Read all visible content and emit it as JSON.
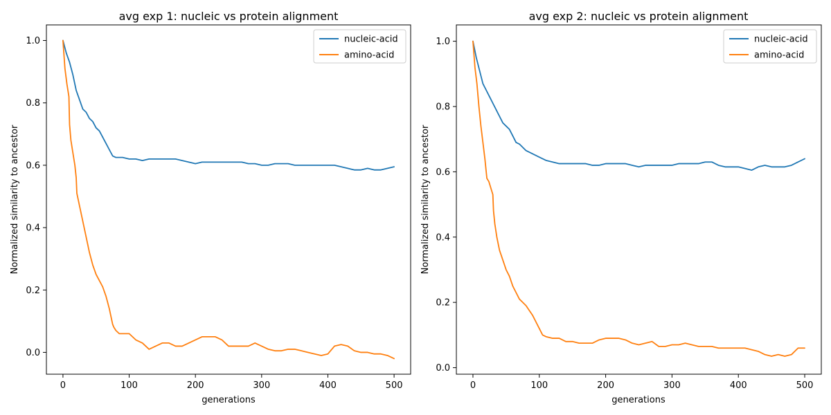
{
  "chart_data": [
    {
      "type": "line",
      "title": "avg exp 1: nucleic vs protein alignment",
      "xlabel": "generations",
      "ylabel": "Normalized similarity to ancestor",
      "xlim": [
        -25,
        525
      ],
      "ylim": [
        -0.07,
        1.05
      ],
      "xticks": [
        0,
        100,
        200,
        300,
        400,
        500
      ],
      "yticks": [
        0.0,
        0.2,
        0.4,
        0.6,
        0.8,
        1.0
      ],
      "ytick_labels": [
        "0.0",
        "0.2",
        "0.4",
        "0.6",
        "0.8",
        "1.0"
      ],
      "legend_position": "top-right",
      "grid": false,
      "series": [
        {
          "name": "nucleic-acid",
          "color": "#1f77b4",
          "x": [
            0,
            5,
            10,
            15,
            20,
            25,
            30,
            35,
            40,
            45,
            50,
            55,
            60,
            65,
            70,
            75,
            80,
            90,
            100,
            110,
            120,
            130,
            140,
            150,
            160,
            170,
            180,
            190,
            200,
            210,
            220,
            230,
            240,
            250,
            260,
            270,
            280,
            290,
            300,
            310,
            320,
            330,
            340,
            350,
            360,
            370,
            380,
            390,
            400,
            410,
            420,
            430,
            440,
            450,
            460,
            470,
            480,
            490,
            500
          ],
          "y": [
            1.0,
            0.96,
            0.93,
            0.89,
            0.84,
            0.81,
            0.78,
            0.77,
            0.75,
            0.74,
            0.72,
            0.71,
            0.69,
            0.67,
            0.65,
            0.63,
            0.625,
            0.625,
            0.62,
            0.62,
            0.615,
            0.62,
            0.62,
            0.62,
            0.62,
            0.62,
            0.615,
            0.61,
            0.605,
            0.61,
            0.61,
            0.61,
            0.61,
            0.61,
            0.61,
            0.61,
            0.605,
            0.605,
            0.6,
            0.6,
            0.605,
            0.605,
            0.605,
            0.6,
            0.6,
            0.6,
            0.6,
            0.6,
            0.6,
            0.6,
            0.595,
            0.59,
            0.585,
            0.585,
            0.59,
            0.585,
            0.585,
            0.59,
            0.595
          ]
        },
        {
          "name": "amino-acid",
          "color": "#ff7f0e",
          "x": [
            0,
            3,
            6,
            9,
            10,
            12,
            15,
            18,
            20,
            21,
            25,
            30,
            35,
            40,
            45,
            50,
            55,
            60,
            65,
            70,
            75,
            77,
            80,
            85,
            90,
            100,
            110,
            120,
            130,
            140,
            150,
            160,
            170,
            180,
            190,
            200,
            210,
            220,
            230,
            240,
            250,
            260,
            270,
            280,
            290,
            300,
            310,
            320,
            330,
            340,
            350,
            360,
            370,
            380,
            390,
            400,
            410,
            420,
            430,
            440,
            450,
            460,
            470,
            480,
            490,
            500
          ],
          "y": [
            1.0,
            0.91,
            0.86,
            0.82,
            0.73,
            0.68,
            0.64,
            0.6,
            0.56,
            0.51,
            0.47,
            0.42,
            0.37,
            0.32,
            0.28,
            0.25,
            0.23,
            0.21,
            0.18,
            0.14,
            0.09,
            0.08,
            0.07,
            0.06,
            0.06,
            0.06,
            0.04,
            0.03,
            0.01,
            0.02,
            0.03,
            0.03,
            0.02,
            0.02,
            0.03,
            0.04,
            0.05,
            0.05,
            0.05,
            0.04,
            0.02,
            0.02,
            0.02,
            0.02,
            0.03,
            0.02,
            0.01,
            0.005,
            0.005,
            0.01,
            0.01,
            0.005,
            0.0,
            -0.005,
            -0.01,
            -0.005,
            0.02,
            0.025,
            0.02,
            0.005,
            0.0,
            0.0,
            -0.005,
            -0.005,
            -0.01,
            -0.02
          ]
        }
      ]
    },
    {
      "type": "line",
      "title": "avg exp 2: nucleic vs protein alignment",
      "xlabel": "generations",
      "ylabel": "Normalized similarity to ancestor",
      "xlim": [
        -25,
        525
      ],
      "ylim": [
        -0.02,
        1.05
      ],
      "xticks": [
        0,
        100,
        200,
        300,
        400,
        500
      ],
      "yticks": [
        0.0,
        0.2,
        0.4,
        0.6,
        0.8,
        1.0
      ],
      "ytick_labels": [
        "0.0",
        "0.2",
        "0.4",
        "0.6",
        "0.8",
        "1.0"
      ],
      "legend_position": "top-right",
      "grid": false,
      "series": [
        {
          "name": "nucleic-acid",
          "color": "#1f77b4",
          "x": [
            0,
            5,
            10,
            15,
            20,
            25,
            30,
            35,
            40,
            45,
            50,
            55,
            60,
            65,
            70,
            75,
            80,
            90,
            100,
            110,
            120,
            130,
            140,
            150,
            160,
            170,
            180,
            190,
            200,
            210,
            220,
            230,
            240,
            250,
            260,
            270,
            280,
            290,
            300,
            310,
            320,
            330,
            340,
            350,
            360,
            370,
            380,
            390,
            400,
            410,
            420,
            430,
            440,
            450,
            460,
            470,
            480,
            490,
            500
          ],
          "y": [
            1.0,
            0.95,
            0.91,
            0.87,
            0.85,
            0.83,
            0.81,
            0.79,
            0.77,
            0.75,
            0.74,
            0.73,
            0.71,
            0.69,
            0.685,
            0.675,
            0.665,
            0.655,
            0.645,
            0.635,
            0.63,
            0.625,
            0.625,
            0.625,
            0.625,
            0.625,
            0.62,
            0.62,
            0.625,
            0.625,
            0.625,
            0.625,
            0.62,
            0.615,
            0.62,
            0.62,
            0.62,
            0.62,
            0.62,
            0.625,
            0.625,
            0.625,
            0.625,
            0.63,
            0.63,
            0.62,
            0.615,
            0.615,
            0.615,
            0.61,
            0.605,
            0.615,
            0.62,
            0.615,
            0.615,
            0.615,
            0.62,
            0.63,
            0.64
          ]
        },
        {
          "name": "amino-acid",
          "color": "#ff7f0e",
          "x": [
            0,
            3,
            6,
            9,
            12,
            15,
            18,
            21,
            24,
            27,
            30,
            31,
            33,
            36,
            40,
            45,
            50,
            55,
            60,
            65,
            70,
            75,
            80,
            85,
            90,
            95,
            100,
            105,
            110,
            120,
            130,
            140,
            150,
            160,
            170,
            180,
            190,
            200,
            210,
            220,
            230,
            240,
            250,
            260,
            270,
            280,
            290,
            300,
            310,
            320,
            330,
            340,
            350,
            360,
            370,
            380,
            390,
            400,
            410,
            420,
            430,
            440,
            450,
            460,
            470,
            480,
            490,
            500
          ],
          "y": [
            1.0,
            0.92,
            0.87,
            0.8,
            0.74,
            0.69,
            0.64,
            0.58,
            0.57,
            0.55,
            0.53,
            0.48,
            0.44,
            0.4,
            0.36,
            0.33,
            0.3,
            0.28,
            0.25,
            0.23,
            0.21,
            0.2,
            0.19,
            0.175,
            0.16,
            0.14,
            0.12,
            0.1,
            0.095,
            0.09,
            0.09,
            0.08,
            0.08,
            0.075,
            0.075,
            0.075,
            0.085,
            0.09,
            0.09,
            0.09,
            0.085,
            0.075,
            0.07,
            0.075,
            0.08,
            0.065,
            0.065,
            0.07,
            0.07,
            0.075,
            0.07,
            0.065,
            0.065,
            0.065,
            0.06,
            0.06,
            0.06,
            0.06,
            0.06,
            0.055,
            0.05,
            0.04,
            0.035,
            0.04,
            0.035,
            0.04,
            0.06,
            0.06
          ]
        }
      ]
    }
  ]
}
